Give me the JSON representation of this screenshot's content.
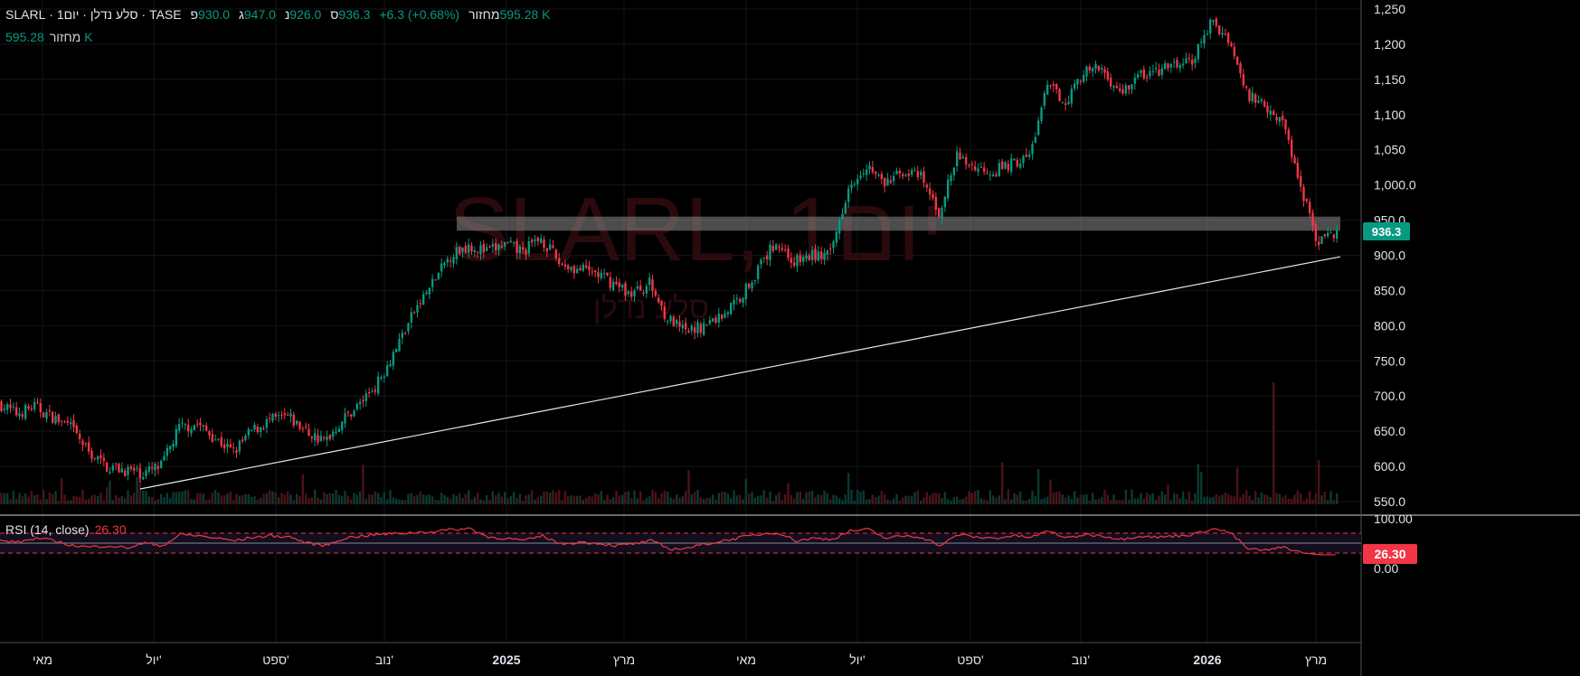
{
  "header": {
    "symbol": "SLARL",
    "interval": "1יום",
    "name": "סלע נדלן",
    "exchange": "TASE",
    "open_label": "פ",
    "open": "930.0",
    "high_label": "ג",
    "high": "947.0",
    "low_label": "נ",
    "low": "926.0",
    "close_label": "ס",
    "close": "936.3",
    "change": "+6.3 (+0.68%)",
    "volume_label": "מחזור",
    "volume": "595.28 K"
  },
  "volume_row": {
    "label": "מחזור",
    "value": "595.28 K"
  },
  "watermark": {
    "title": "SLARL, 1יום",
    "subtitle": "סלע נדלן"
  },
  "colors": {
    "up": "#089981",
    "down": "#f23645",
    "rsi": "#f23645",
    "background": "#000000"
  },
  "chart_data": {
    "type": "candlestick",
    "title": "SLARL, 1יום",
    "price_axis": {
      "ticks": [
        "1,250",
        "1,200",
        "1,150",
        "1,100",
        "1,050",
        "1,000.0",
        "950.0",
        "900.0",
        "850.0",
        "800.0",
        "750.0",
        "700.0",
        "650.0",
        "600.0",
        "550.0"
      ],
      "ylim": [
        550,
        1250
      ]
    },
    "time_axis": {
      "ticks": [
        "מאי",
        "יול'",
        "ספט'",
        "נוב'",
        "2025",
        "מרץ",
        "מאי",
        "יול'",
        "ספט'",
        "נוב'",
        "2026",
        "מרץ"
      ]
    },
    "closes": [
      690,
      675,
      685,
      670,
      655,
      620,
      600,
      595,
      590,
      600,
      655,
      660,
      640,
      620,
      650,
      665,
      670,
      650,
      635,
      665,
      690,
      720,
      770,
      820,
      860,
      900,
      915,
      905,
      915,
      905,
      925,
      890,
      880,
      875,
      860,
      845,
      860,
      810,
      790,
      800,
      815,
      840,
      880,
      920,
      890,
      900,
      900,
      1000,
      1030,
      1000,
      1020,
      1010,
      960,
      1040,
      1025,
      1020,
      1030,
      1040,
      1140,
      1120,
      1160,
      1165,
      1130,
      1155,
      1160,
      1170,
      1175,
      1230,
      1210,
      1130,
      1115,
      1090,
      1000,
      915,
      936.3
    ],
    "last_price": "936.3",
    "resistance_zone": [
      935,
      955
    ],
    "trendline": {
      "from_price": 568,
      "to_price": 898
    },
    "rsi": {
      "label": "RSI (14, close)",
      "value": "26.30",
      "levels": [
        70,
        50,
        30
      ],
      "axis": [
        "100.00",
        "0.00"
      ],
      "values": [
        55,
        52,
        60,
        55,
        45,
        42,
        45,
        40,
        50,
        45,
        68,
        65,
        60,
        55,
        62,
        65,
        63,
        50,
        45,
        60,
        65,
        68,
        70,
        72,
        74,
        78,
        80,
        62,
        60,
        55,
        65,
        48,
        52,
        50,
        45,
        48,
        55,
        38,
        40,
        48,
        55,
        62,
        68,
        72,
        55,
        60,
        58,
        75,
        78,
        60,
        65,
        62,
        45,
        68,
        62,
        60,
        65,
        62,
        75,
        60,
        68,
        65,
        58,
        65,
        62,
        65,
        68,
        80,
        72,
        38,
        35,
        42,
        30,
        26.3,
        26.3
      ]
    }
  }
}
